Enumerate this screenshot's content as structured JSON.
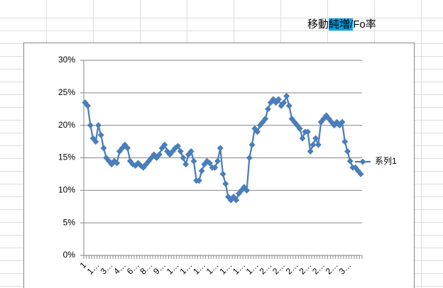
{
  "cell": {
    "parts": [
      "移動",
      "純増/",
      "Fo率"
    ]
  },
  "chart_data": {
    "type": "line",
    "categories": [
      "1",
      null,
      null,
      null,
      null,
      "1…",
      null,
      null,
      null,
      null,
      "3…",
      null,
      null,
      null,
      null,
      "4…",
      null,
      null,
      null,
      null,
      "6…",
      null,
      null,
      null,
      null,
      "8…",
      null,
      null,
      null,
      null,
      "9…",
      null,
      null,
      null,
      null,
      "1…",
      null,
      null,
      null,
      null,
      "1…",
      null,
      null,
      null,
      null,
      "1…",
      null,
      null,
      null,
      null,
      "1…",
      null,
      null,
      null,
      null,
      "1…",
      null,
      null,
      null,
      null,
      "1…",
      null,
      null,
      null,
      null,
      "1…",
      null,
      null,
      null,
      null,
      "2…",
      null,
      null,
      null,
      null,
      "2…",
      null,
      null,
      null,
      null,
      "2…",
      null,
      null,
      null,
      null,
      "2…",
      null,
      null,
      null,
      null,
      "2…",
      null,
      null,
      null,
      null,
      "2…",
      null,
      null,
      null,
      null,
      "3…",
      null,
      null,
      null,
      null
    ],
    "series": [
      {
        "name": "系列1",
        "color": "#4A7EBB",
        "values": [
          23.5,
          23,
          20,
          18,
          17.5,
          20,
          18.5,
          16.5,
          15,
          14.5,
          14,
          14.5,
          14.2,
          16,
          16.5,
          17,
          16.5,
          14.5,
          14,
          13.8,
          14.2,
          13.8,
          13.5,
          14,
          14.5,
          15,
          15.5,
          15,
          15.5,
          16.5,
          17,
          16,
          15.5,
          16,
          16.5,
          16.8,
          16,
          15,
          14,
          15.5,
          16,
          14.5,
          11.5,
          11.5,
          13,
          14,
          14.5,
          14.2,
          13.5,
          13.5,
          14.5,
          16.5,
          12.5,
          11,
          9,
          8.5,
          9,
          8.5,
          9.5,
          10,
          10.5,
          10,
          15,
          17,
          19.5,
          19,
          20,
          20.5,
          21,
          22.5,
          23.5,
          24,
          23.5,
          24,
          23,
          23.5,
          24.5,
          23,
          21,
          20.5,
          20,
          19.5,
          18,
          19,
          19,
          16,
          17,
          18,
          17,
          20.5,
          21,
          21.5,
          21,
          20.5,
          20,
          20.5,
          20,
          20.5,
          17.5,
          16,
          14.5,
          13.5,
          13.5,
          13,
          12.5
        ]
      }
    ],
    "ylim": [
      0,
      30
    ],
    "yticks": [
      {
        "value": 0,
        "label": "0%"
      },
      {
        "value": 5,
        "label": "5%"
      },
      {
        "value": 10,
        "label": "10%"
      },
      {
        "value": 15,
        "label": "15%"
      },
      {
        "value": 20,
        "label": "20%"
      },
      {
        "value": 25,
        "label": "25%"
      },
      {
        "value": 30,
        "label": "30%"
      }
    ],
    "grid": true,
    "legend": "right",
    "marker": "diamond"
  }
}
